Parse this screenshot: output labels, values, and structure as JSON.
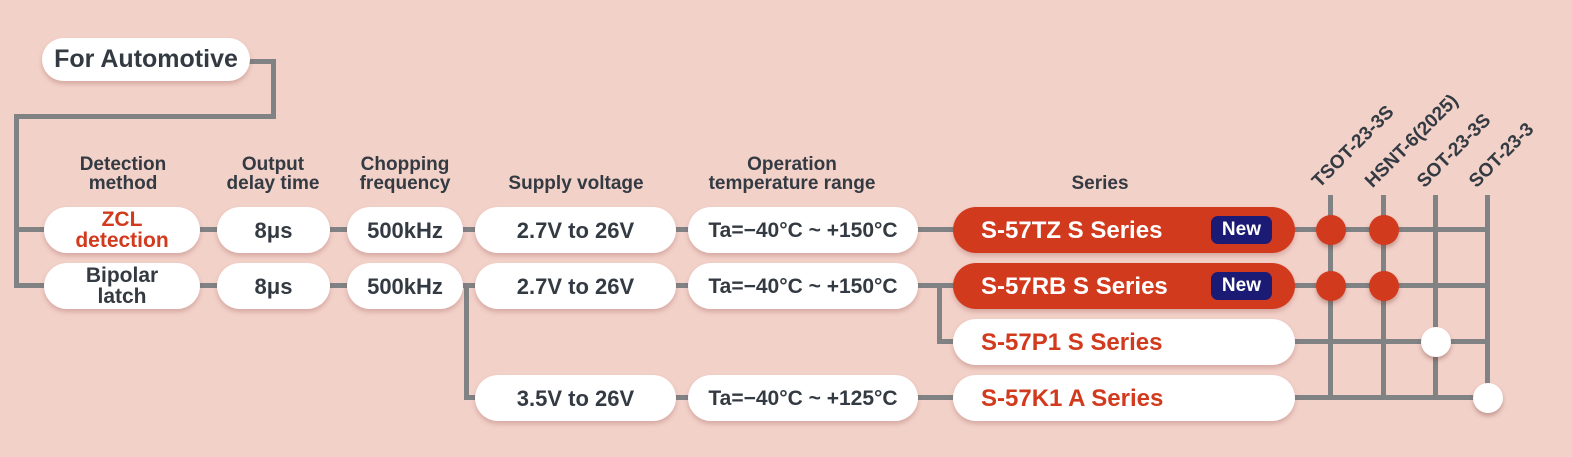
{
  "root": {
    "label": "For Automotive"
  },
  "headers": [
    {
      "label": "Detection\nmethod"
    },
    {
      "label": "Output\ndelay time"
    },
    {
      "label": "Chopping\nfrequency"
    },
    {
      "label": "Supply voltage"
    },
    {
      "label": "Operation\ntemperature range"
    },
    {
      "label": "Series"
    }
  ],
  "packages": [
    "TSOT-23-3S",
    "HSNT-6(2025)",
    "SOT-23-3S",
    "SOT-23-3"
  ],
  "rows": [
    {
      "detection": "ZCL\ndetection",
      "delay": "8μs",
      "freq": "500kHz",
      "supply": "2.7V to 26V",
      "temp": "Ta=−40°C ~ +150°C",
      "series": "S-57TZ S Series",
      "badge": "New"
    },
    {
      "detection": "Bipolar\nlatch",
      "delay": "8μs",
      "freq": "500kHz",
      "supply": "2.7V to 26V",
      "temp": "Ta=−40°C ~ +150°C",
      "series": "S-57RB S Series",
      "badge": "New"
    },
    {
      "series": "S-57P1 S Series"
    },
    {
      "supply": "3.5V to 26V",
      "temp": "Ta=−40°C ~ +125°C",
      "series": "S-57K1 A Series"
    }
  ],
  "availability": [
    {
      "series": "S-57TZ S Series",
      "package": "TSOT-23-3S",
      "row": 0,
      "col": 0,
      "color": "red"
    },
    {
      "series": "S-57TZ S Series",
      "package": "HSNT-6(2025)",
      "row": 0,
      "col": 1,
      "color": "red"
    },
    {
      "series": "S-57RB S Series",
      "package": "TSOT-23-3S",
      "row": 1,
      "col": 0,
      "color": "red"
    },
    {
      "series": "S-57RB S Series",
      "package": "HSNT-6(2025)",
      "row": 1,
      "col": 1,
      "color": "red"
    },
    {
      "series": "S-57P1 S Series",
      "package": "SOT-23-3S",
      "row": 2,
      "col": 2,
      "color": "white"
    },
    {
      "series": "S-57K1 A Series",
      "package": "SOT-23-3",
      "row": 3,
      "col": 3,
      "color": "white"
    }
  ],
  "colors": {
    "background": "#f2d1c9",
    "accent_red": "#d23a1d",
    "badge_navy": "#1b1a74",
    "line_gray": "#808284",
    "text_dark": "#333a42",
    "pill_white": "#ffffff"
  }
}
